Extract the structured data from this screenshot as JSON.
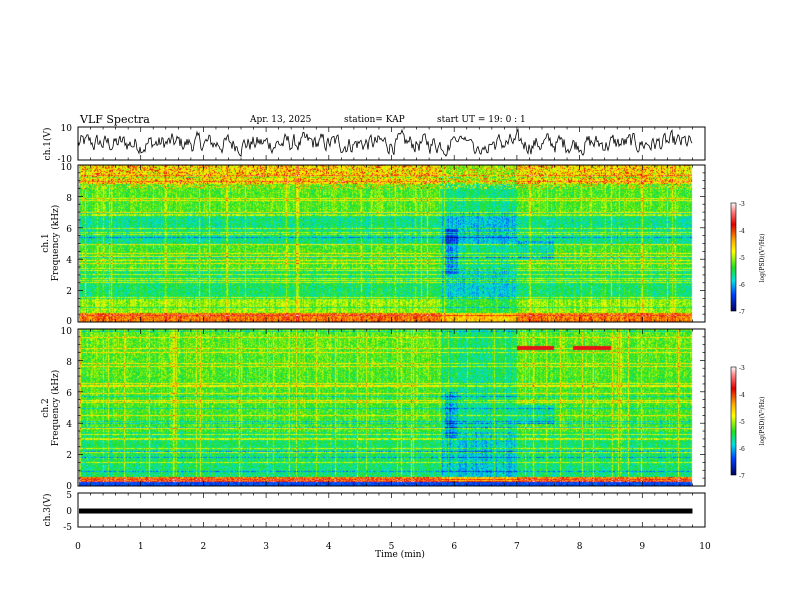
{
  "header": {
    "title": "VLF Spectra",
    "date": "Apr. 13, 2025",
    "station": "station= KAP",
    "start": "start  UT  =    19: 0  : 1"
  },
  "chart_data": [
    {
      "id": "ch1-waveform",
      "type": "line",
      "ylabel": "ch.1(V)",
      "ylim": [
        -10,
        10
      ],
      "yticks": [
        "10",
        "-10"
      ],
      "xlim": [
        0,
        10
      ],
      "line_color": "#000000"
    },
    {
      "id": "ch1-spectrogram",
      "type": "heatmap",
      "ylabel_top": "ch.1",
      "ylabel": "Frequency (kHz)",
      "ylim": [
        0,
        10
      ],
      "yticks": [
        "0",
        "2",
        "4",
        "6",
        "8",
        "10"
      ],
      "xlim": [
        0,
        10
      ],
      "data_end_min": 9.8,
      "colorbar": {
        "ticks": [
          "-3",
          "-4",
          "-5",
          "-6",
          "-7"
        ],
        "label": "log(PSD)(V²/Hz)",
        "range": [
          -7,
          -3
        ]
      }
    },
    {
      "id": "ch2-spectrogram",
      "type": "heatmap",
      "ylabel_top": "ch.2",
      "ylabel": "Frequency (kHz)",
      "ylim": [
        0,
        10
      ],
      "yticks": [
        "0",
        "2",
        "4",
        "6",
        "8",
        "10"
      ],
      "xlim": [
        0,
        10
      ],
      "data_end_min": 9.8,
      "colorbar": {
        "ticks": [
          "-3",
          "-4",
          "-5",
          "-6",
          "-7"
        ],
        "label": "log(PSD)(V²/Hz)",
        "range": [
          -7,
          -3
        ]
      }
    },
    {
      "id": "ch3",
      "type": "line",
      "ylabel": "ch.3(V)",
      "ylim": [
        -5,
        5
      ],
      "yticks": [
        "5",
        "0",
        "-5"
      ],
      "level": -0.3,
      "xlim": [
        0,
        10
      ]
    }
  ],
  "xaxis": {
    "label": "Time (min)",
    "ticks": [
      "0",
      "1",
      "2",
      "3",
      "4",
      "5",
      "6",
      "7",
      "8",
      "9",
      "10"
    ]
  }
}
